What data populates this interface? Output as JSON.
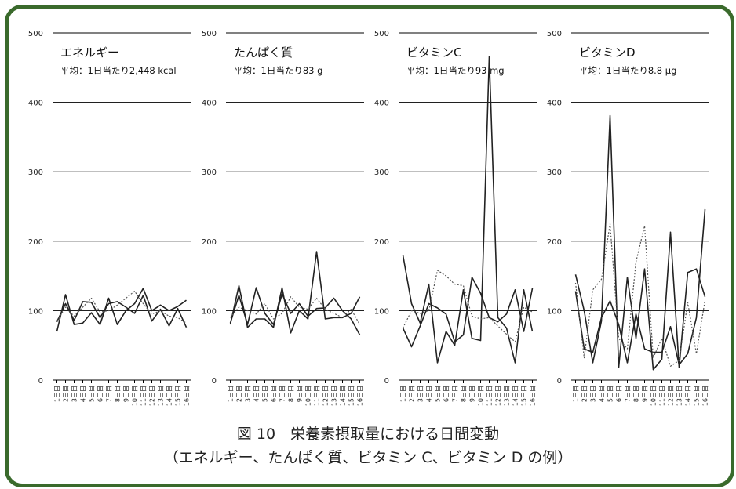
{
  "colors": {
    "border": "#3a6a2c",
    "line": "#222222",
    "dotted": "#555555"
  },
  "caption": {
    "line1": "図 10　栄養素摂取量における日間変動",
    "line2": "（エネルギー、たんぱく質、ビタミン C、ビタミン D の例）"
  },
  "chart_data": [
    {
      "type": "line",
      "title": "エネルギー",
      "subtitle": "平均：1日当たり2,448 kcal",
      "categories": [
        "1日目",
        "2日目",
        "3日目",
        "4日目",
        "5日目",
        "6日目",
        "7日目",
        "8日目",
        "9日目",
        "10日目",
        "11日目",
        "12日目",
        "13日目",
        "14日目",
        "15日目",
        "16日目"
      ],
      "yticks": [
        0,
        100,
        200,
        300,
        400,
        500
      ],
      "ylim": [
        0,
        500
      ],
      "grid": true,
      "series": [
        {
          "style": "solid",
          "values": [
            70,
            123,
            80,
            82,
            97,
            80,
            118,
            80,
            100,
            110,
            132,
            100,
            108,
            100,
            106,
            115
          ]
        },
        {
          "style": "solid",
          "values": [
            84,
            110,
            86,
            113,
            112,
            90,
            110,
            113,
            105,
            96,
            122,
            85,
            102,
            78,
            103,
            76
          ]
        },
        {
          "style": "dotted",
          "values": [
            85,
            105,
            92,
            105,
            118,
            98,
            100,
            108,
            118,
            128,
            110,
            95,
            100,
            92,
            90,
            82
          ]
        }
      ]
    },
    {
      "type": "line",
      "title": "たんぱく質",
      "subtitle": "平均：1日当たり83 g",
      "categories": [
        "1日目",
        "2日目",
        "3日目",
        "4日目",
        "5日目",
        "6日目",
        "7日目",
        "8日目",
        "9日目",
        "10日目",
        "11日目",
        "12日目",
        "13日目",
        "14日目",
        "15日目",
        "16日目"
      ],
      "yticks": [
        0,
        100,
        200,
        300,
        400,
        500
      ],
      "ylim": [
        0,
        500
      ],
      "grid": true,
      "series": [
        {
          "style": "solid",
          "values": [
            80,
            136,
            76,
            88,
            88,
            76,
            133,
            68,
            100,
            88,
            185,
            88,
            90,
            90,
            96,
            120
          ]
        },
        {
          "style": "solid",
          "values": [
            82,
            122,
            80,
            133,
            96,
            80,
            124,
            96,
            110,
            92,
            103,
            104,
            118,
            100,
            88,
            65
          ]
        },
        {
          "style": "dotted",
          "values": [
            90,
            105,
            100,
            95,
            110,
            88,
            96,
            120,
            105,
            102,
            118,
            102,
            96,
            90,
            102,
            80
          ]
        }
      ]
    },
    {
      "type": "line",
      "title": "ビタミンC",
      "subtitle": "平均：1日当たり93 mg",
      "categories": [
        "1日目",
        "2日目",
        "3日目",
        "4日目",
        "5日目",
        "6日目",
        "7日目",
        "8日目",
        "9日目",
        "10日目",
        "11日目",
        "12日目",
        "13日目",
        "14日目",
        "15日目",
        "16日目"
      ],
      "yticks": [
        0,
        100,
        200,
        300,
        400,
        500
      ],
      "ylim": [
        0,
        500
      ],
      "grid": true,
      "series": [
        {
          "style": "solid",
          "values": [
            180,
            110,
            82,
            138,
            25,
            70,
            50,
            130,
            60,
            57,
            466,
            90,
            75,
            25,
            130,
            70
          ]
        },
        {
          "style": "solid",
          "values": [
            75,
            48,
            78,
            110,
            104,
            95,
            55,
            65,
            148,
            125,
            90,
            84,
            95,
            130,
            70,
            132
          ]
        },
        {
          "style": "dotted",
          "values": [
            75,
            100,
            96,
            100,
            158,
            150,
            138,
            136,
            92,
            88,
            90,
            78,
            66,
            55,
            105,
            98
          ]
        }
      ]
    },
    {
      "type": "line",
      "title": "ビタミンD",
      "subtitle": "平均：1日当たり8.8 µg",
      "categories": [
        "1日目",
        "2日目",
        "3日目",
        "4日目",
        "5日目",
        "6日目",
        "7日目",
        "8日目",
        "9日目",
        "10日目",
        "11日目",
        "12日目",
        "13日目",
        "14日目",
        "15日目",
        "16日目"
      ],
      "yticks": [
        0,
        100,
        200,
        300,
        400,
        500
      ],
      "ylim": [
        0,
        500
      ],
      "grid": true,
      "series": [
        {
          "style": "solid",
          "values": [
            152,
            100,
            25,
            85,
            381,
            18,
            148,
            60,
            160,
            15,
            30,
            213,
            18,
            155,
            160,
            120
          ]
        },
        {
          "style": "solid",
          "values": [
            128,
            45,
            40,
            90,
            114,
            80,
            25,
            95,
            45,
            40,
            40,
            77,
            22,
            38,
            90,
            246
          ]
        },
        {
          "style": "dotted",
          "values": [
            140,
            32,
            130,
            145,
            225,
            60,
            45,
            170,
            222,
            32,
            60,
            20,
            28,
            112,
            38,
            115
          ]
        }
      ]
    }
  ]
}
